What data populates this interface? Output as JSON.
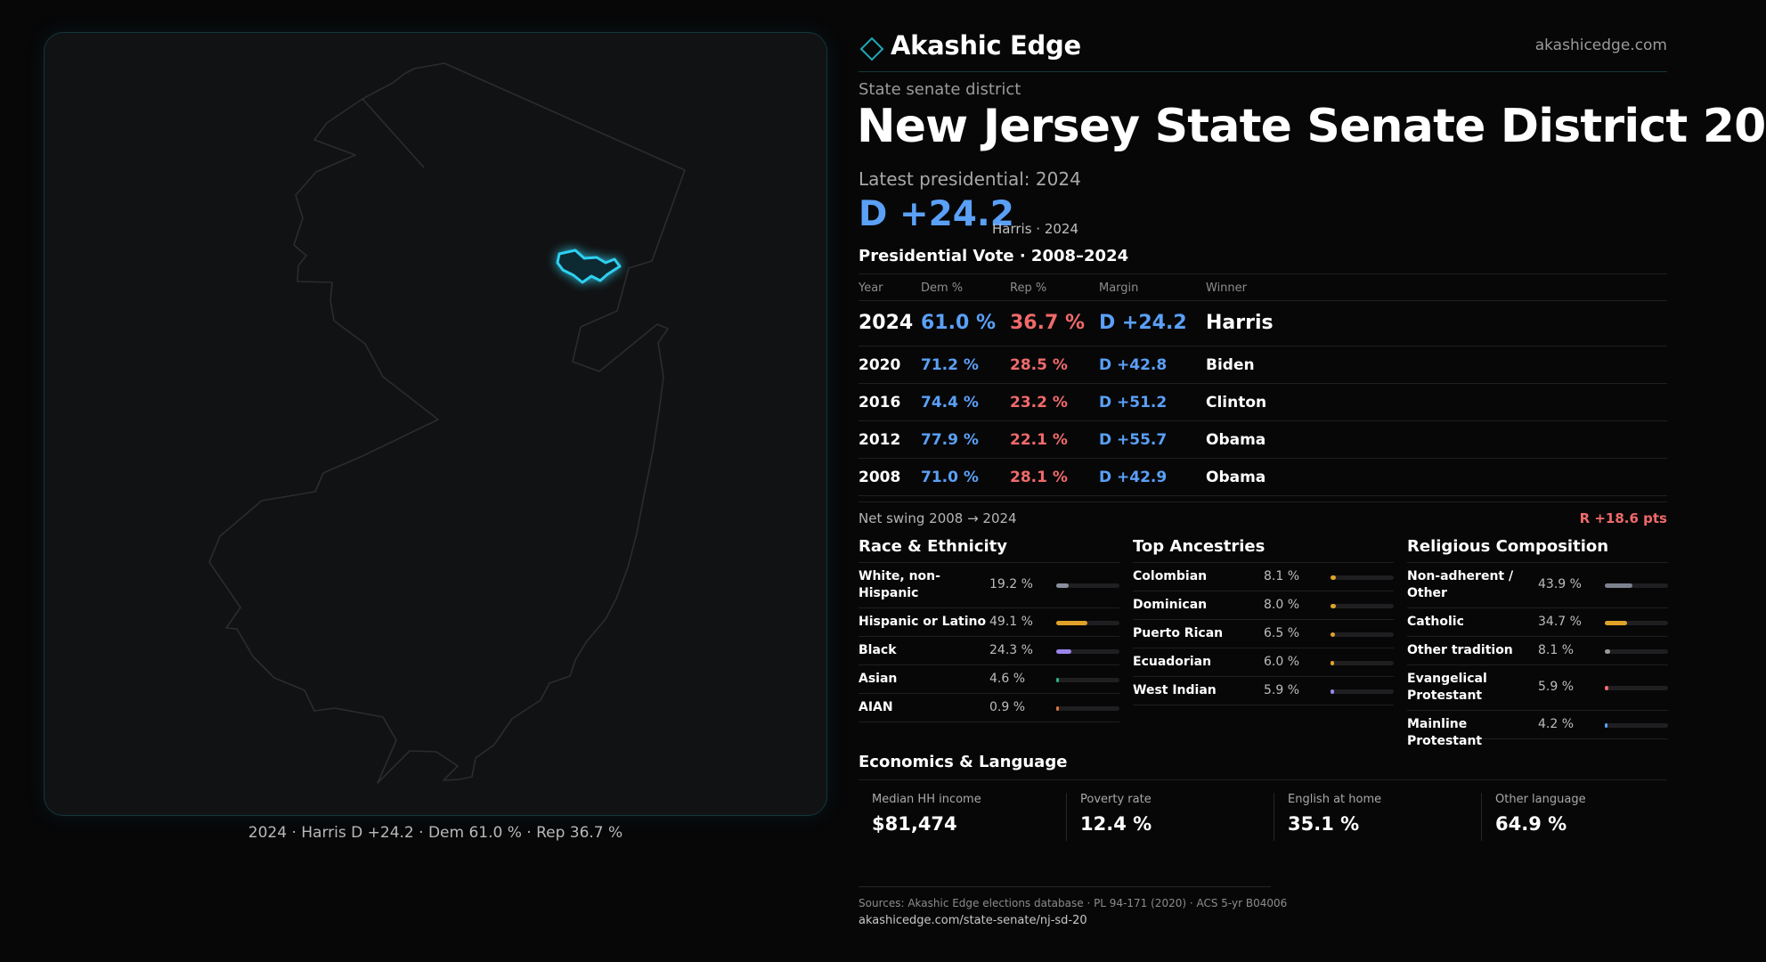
{
  "map": {
    "caption": "2024 · Harris D +24.2 · Dem 61.0 % · Rep 36.7 %"
  },
  "header": {
    "brand": "Akashic Edge",
    "url": "akashicedge.com",
    "logo_icon": "diamond-outline-icon",
    "accent_color": "#1fa6b8"
  },
  "district": {
    "kind": "State senate district",
    "title": "New Jersey State Senate District 20",
    "latest_label": "Latest presidential: 2024",
    "latest_margin": "D +24.2",
    "latest_winner": "Harris · 2024"
  },
  "presidential": {
    "title": "Presidential Vote · 2008–2024",
    "headers": [
      "Year",
      "Dem %",
      "Rep %",
      "Margin",
      "Winner"
    ],
    "rows": [
      {
        "year": "2024",
        "dem": "61.0 %",
        "rep": "36.7 %",
        "margin": "D +24.2",
        "winner": "Harris"
      },
      {
        "year": "2020",
        "dem": "71.2 %",
        "rep": "28.5 %",
        "margin": "D +42.8",
        "winner": "Biden"
      },
      {
        "year": "2016",
        "dem": "74.4 %",
        "rep": "23.2 %",
        "margin": "D +51.2",
        "winner": "Clinton"
      },
      {
        "year": "2012",
        "dem": "77.9 %",
        "rep": "22.1 %",
        "margin": "D +55.7",
        "winner": "Obama"
      },
      {
        "year": "2008",
        "dem": "71.0 %",
        "rep": "28.1 %",
        "margin": "D +42.9",
        "winner": "Obama"
      }
    ],
    "dem_color": "#5aa0f6",
    "rep_color": "#f06a6a",
    "swing_label": "Net swing 2008 → 2024",
    "swing_value": "R +18.6 pts"
  },
  "race": {
    "title": "Race & Ethnicity",
    "items": [
      {
        "label": "White, non-Hispanic",
        "pct": "19.2 %",
        "value": 19.2,
        "color": "#8a8f9c"
      },
      {
        "label": "Hispanic or Latino",
        "pct": "49.1 %",
        "value": 49.1,
        "color": "#e0a228"
      },
      {
        "label": "Black",
        "pct": "24.3 %",
        "value": 24.3,
        "color": "#9b84e8"
      },
      {
        "label": "Asian",
        "pct": "4.6 %",
        "value": 4.6,
        "color": "#2fb37a"
      },
      {
        "label": "AIAN",
        "pct": "0.9 %",
        "value": 0.9,
        "color": "#d9743a"
      }
    ]
  },
  "ancestry": {
    "title": "Top Ancestries",
    "items": [
      {
        "label": "Colombian",
        "pct": "8.1 %",
        "value": 8.1,
        "color": "#e0a228"
      },
      {
        "label": "Dominican",
        "pct": "8.0 %",
        "value": 8.0,
        "color": "#e0a228"
      },
      {
        "label": "Puerto Rican",
        "pct": "6.5 %",
        "value": 6.5,
        "color": "#e0a228"
      },
      {
        "label": "Ecuadorian",
        "pct": "6.0 %",
        "value": 6.0,
        "color": "#e0a228"
      },
      {
        "label": "West Indian",
        "pct": "5.9 %",
        "value": 5.9,
        "color": "#9b84e8"
      }
    ]
  },
  "religion": {
    "title": "Religious Composition",
    "items": [
      {
        "label": "Non-adherent / Other",
        "pct": "43.9 %",
        "value": 43.9,
        "color": "#7d8190"
      },
      {
        "label": "Catholic",
        "pct": "34.7 %",
        "value": 34.7,
        "color": "#e0a228"
      },
      {
        "label": "Other tradition",
        "pct": "8.1 %",
        "value": 8.1,
        "color": "#9a9a9a"
      },
      {
        "label": "Evangelical Protestant",
        "pct": "5.9 %",
        "value": 5.9,
        "color": "#f06a6a"
      },
      {
        "label": "Mainline Protestant",
        "pct": "4.2 %",
        "value": 4.2,
        "color": "#5aa0f6"
      }
    ]
  },
  "economics": {
    "title": "Economics & Language",
    "items": [
      {
        "label": "Median HH income",
        "value": "$81,474"
      },
      {
        "label": "Poverty rate",
        "value": "12.4 %"
      },
      {
        "label": "English at home",
        "value": "35.1 %"
      },
      {
        "label": "Other language",
        "value": "64.9 %"
      }
    ]
  },
  "footer": {
    "sources": "Sources: Akashic Edge elections database · PL 94-171 (2020) · ACS 5-yr B04006",
    "url": "akashicedge.com/state-senate/nj-sd-20"
  }
}
